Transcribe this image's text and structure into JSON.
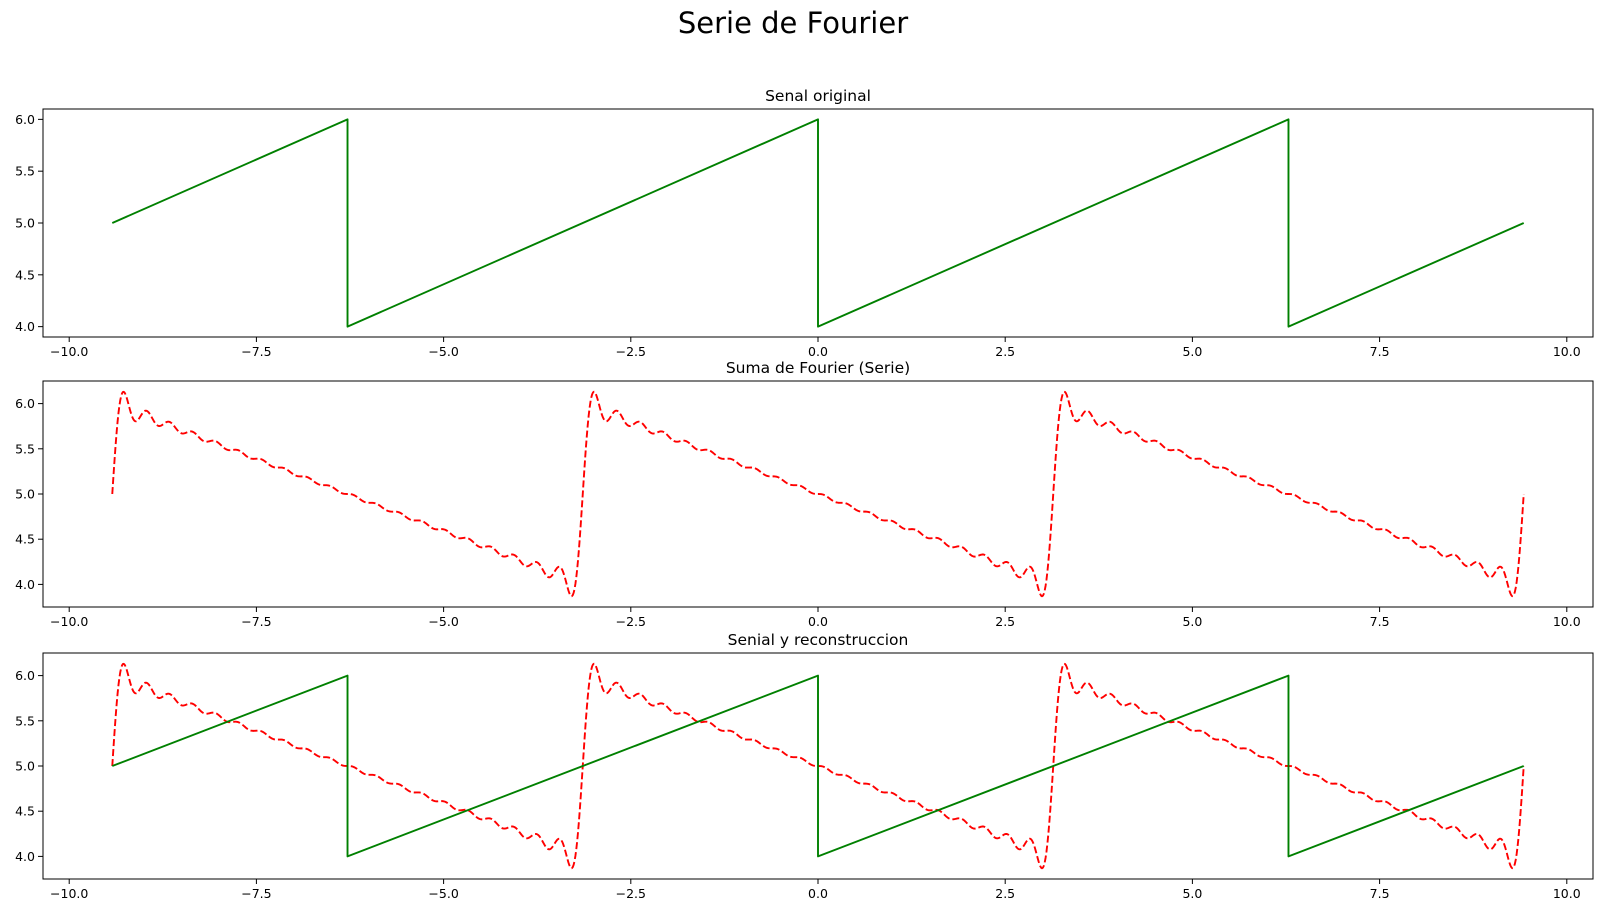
{
  "figure": {
    "title": "Serie de Fourier"
  },
  "signal": {
    "period": 6.283185307,
    "offset": 5.0,
    "amplitude": 1.0,
    "x_range": [
      -9.42477796,
      9.42477796
    ],
    "fourier_terms": 20
  },
  "chart_data": [
    {
      "type": "line",
      "title": "Senal original",
      "xlabel": "",
      "ylabel": "",
      "xlim": [
        -10.35,
        10.35
      ],
      "ylim": [
        3.9,
        6.1
      ],
      "xticks": [
        -10.0,
        -7.5,
        -5.0,
        -2.5,
        0.0,
        2.5,
        5.0,
        7.5,
        10.0
      ],
      "xtick_labels": [
        "−10.0",
        "−7.5",
        "−5.0",
        "−2.5",
        "0.0",
        "2.5",
        "5.0",
        "7.5",
        "10.0"
      ],
      "yticks": [
        4.0,
        4.5,
        5.0,
        5.5,
        6.0
      ],
      "ytick_labels": [
        "4.0",
        "4.5",
        "5.0",
        "5.5",
        "6.0"
      ],
      "grid": false,
      "legend": "none",
      "series": [
        {
          "kind": "sawtooth",
          "style": "solid",
          "color": "#008000",
          "points": [
            [
              -9.42478,
              5.0
            ],
            [
              -6.28319,
              6.0
            ],
            [
              -6.28319,
              4.0
            ],
            [
              0.0,
              6.0
            ],
            [
              0.0,
              4.0
            ],
            [
              6.28319,
              6.0
            ],
            [
              6.28319,
              4.0
            ],
            [
              9.42478,
              5.0
            ]
          ]
        }
      ]
    },
    {
      "type": "line",
      "title": "Suma de Fourier (Serie)",
      "xlabel": "",
      "ylabel": "",
      "xlim": [
        -10.35,
        10.35
      ],
      "ylim": [
        3.75,
        6.25
      ],
      "xticks": [
        -10.0,
        -7.5,
        -5.0,
        -2.5,
        0.0,
        2.5,
        5.0,
        7.5,
        10.0
      ],
      "xtick_labels": [
        "−10.0",
        "−7.5",
        "−5.0",
        "−2.5",
        "0.0",
        "2.5",
        "5.0",
        "7.5",
        "10.0"
      ],
      "yticks": [
        4.0,
        4.5,
        5.0,
        5.5,
        6.0
      ],
      "ytick_labels": [
        "4.0",
        "4.5",
        "5.0",
        "5.5",
        "6.0"
      ],
      "grid": false,
      "legend": "none",
      "series": [
        {
          "kind": "fourier",
          "style": "dashed",
          "color": "#ff0000"
        }
      ]
    },
    {
      "type": "line",
      "title": "Senial y reconstruccion",
      "xlabel": "",
      "ylabel": "",
      "xlim": [
        -10.35,
        10.35
      ],
      "ylim": [
        3.75,
        6.25
      ],
      "xticks": [
        -10.0,
        -7.5,
        -5.0,
        -2.5,
        0.0,
        2.5,
        5.0,
        7.5,
        10.0
      ],
      "xtick_labels": [
        "−10.0",
        "−7.5",
        "−5.0",
        "−2.5",
        "0.0",
        "2.5",
        "5.0",
        "7.5",
        "10.0"
      ],
      "yticks": [
        4.0,
        4.5,
        5.0,
        5.5,
        6.0
      ],
      "ytick_labels": [
        "4.0",
        "4.5",
        "5.0",
        "5.5",
        "6.0"
      ],
      "grid": false,
      "legend": "none",
      "series": [
        {
          "kind": "fourier",
          "style": "dashed",
          "color": "#ff0000"
        },
        {
          "kind": "sawtooth",
          "style": "solid",
          "color": "#008000",
          "points": [
            [
              -9.42478,
              5.0
            ],
            [
              -6.28319,
              6.0
            ],
            [
              -6.28319,
              4.0
            ],
            [
              0.0,
              6.0
            ],
            [
              0.0,
              4.0
            ],
            [
              6.28319,
              6.0
            ],
            [
              6.28319,
              4.0
            ],
            [
              9.42478,
              5.0
            ]
          ]
        }
      ]
    }
  ]
}
